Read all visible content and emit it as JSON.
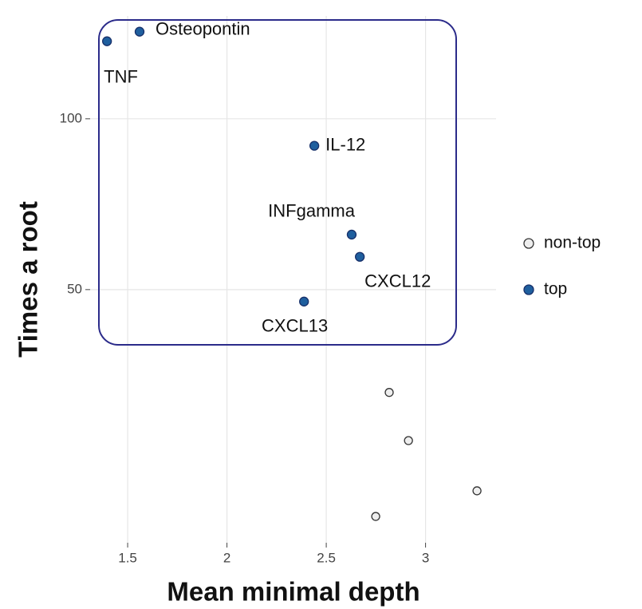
{
  "chart_data": {
    "type": "scatter",
    "xlabel": "Mean minimal depth",
    "ylabel": "Times a root",
    "xlim": [
      1.311,
      3.355
    ],
    "ylim": [
      -24.1,
      130.1
    ],
    "xticks": [
      1.5,
      2.0,
      2.5,
      3.0
    ],
    "yticks": [
      50,
      100
    ],
    "grid": true,
    "series": [
      {
        "name": "non-top",
        "color": "#eeeeee",
        "x": [
          2.817,
          2.914,
          3.259,
          2.749
        ],
        "values": [
          19.9,
          5.8,
          -8.9,
          -16.4
        ]
      },
      {
        "name": "top",
        "color": "#1f5f9e",
        "x": [
          1.396,
          1.56,
          2.44,
          2.628,
          2.669,
          2.388
        ],
        "values": [
          122.7,
          125.5,
          92.1,
          66.1,
          59.6,
          46.5
        ],
        "labels": [
          "TNF",
          "Osteopontin",
          "IL-12",
          "INFgamma",
          "CXCL12",
          "CXCL13"
        ]
      }
    ]
  }
}
